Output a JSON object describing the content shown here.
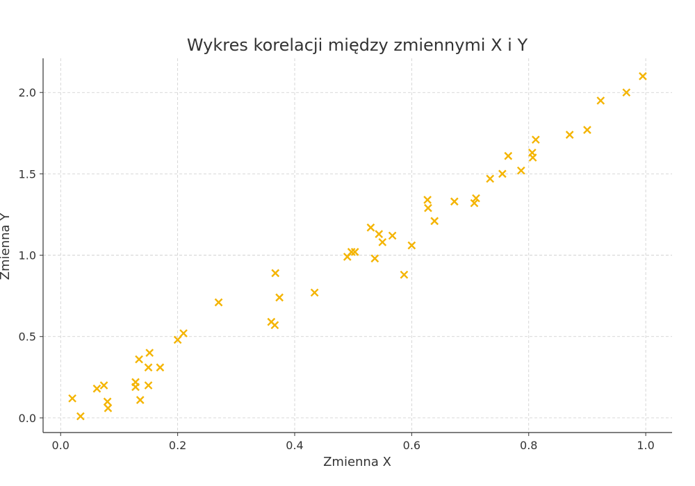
{
  "colors": {
    "marker": "#F4B400"
  },
  "chart_data": {
    "type": "scatter",
    "title": "Wykres korelacji między zmiennymi X i Y",
    "xlabel": "Zmienna X",
    "ylabel": "Zmienna Y",
    "xlim": [
      -0.03,
      1.045
    ],
    "ylim": [
      -0.09,
      2.21
    ],
    "xticks": [
      0.0,
      0.2,
      0.4,
      0.6,
      0.8,
      1.0
    ],
    "xtick_labels": [
      "0.0",
      "0.2",
      "0.4",
      "0.6",
      "0.8",
      "1.0"
    ],
    "yticks": [
      0.0,
      0.5,
      1.0,
      1.5,
      2.0
    ],
    "ytick_labels": [
      "0.0",
      "0.5",
      "1.0",
      "1.5",
      "2.0"
    ],
    "grid": true,
    "marker": "x",
    "points": [
      {
        "x": 0.02,
        "y": 0.12
      },
      {
        "x": 0.034,
        "y": 0.01
      },
      {
        "x": 0.062,
        "y": 0.18
      },
      {
        "x": 0.074,
        "y": 0.2
      },
      {
        "x": 0.08,
        "y": 0.1
      },
      {
        "x": 0.081,
        "y": 0.06
      },
      {
        "x": 0.128,
        "y": 0.22
      },
      {
        "x": 0.128,
        "y": 0.19
      },
      {
        "x": 0.134,
        "y": 0.36
      },
      {
        "x": 0.136,
        "y": 0.11
      },
      {
        "x": 0.15,
        "y": 0.31
      },
      {
        "x": 0.15,
        "y": 0.2
      },
      {
        "x": 0.152,
        "y": 0.4
      },
      {
        "x": 0.17,
        "y": 0.31
      },
      {
        "x": 0.2,
        "y": 0.48
      },
      {
        "x": 0.21,
        "y": 0.52
      },
      {
        "x": 0.27,
        "y": 0.71
      },
      {
        "x": 0.36,
        "y": 0.59
      },
      {
        "x": 0.366,
        "y": 0.57
      },
      {
        "x": 0.367,
        "y": 0.89
      },
      {
        "x": 0.374,
        "y": 0.74
      },
      {
        "x": 0.434,
        "y": 0.77
      },
      {
        "x": 0.49,
        "y": 0.99
      },
      {
        "x": 0.497,
        "y": 1.02
      },
      {
        "x": 0.503,
        "y": 1.02
      },
      {
        "x": 0.53,
        "y": 1.17
      },
      {
        "x": 0.537,
        "y": 0.98
      },
      {
        "x": 0.544,
        "y": 1.13
      },
      {
        "x": 0.55,
        "y": 1.08
      },
      {
        "x": 0.567,
        "y": 1.12
      },
      {
        "x": 0.587,
        "y": 0.88
      },
      {
        "x": 0.6,
        "y": 1.06
      },
      {
        "x": 0.627,
        "y": 1.34
      },
      {
        "x": 0.628,
        "y": 1.29
      },
      {
        "x": 0.639,
        "y": 1.21
      },
      {
        "x": 0.673,
        "y": 1.33
      },
      {
        "x": 0.707,
        "y": 1.32
      },
      {
        "x": 0.71,
        "y": 1.35
      },
      {
        "x": 0.734,
        "y": 1.47
      },
      {
        "x": 0.755,
        "y": 1.5
      },
      {
        "x": 0.765,
        "y": 1.61
      },
      {
        "x": 0.787,
        "y": 1.52
      },
      {
        "x": 0.806,
        "y": 1.63
      },
      {
        "x": 0.807,
        "y": 1.6
      },
      {
        "x": 0.812,
        "y": 1.71
      },
      {
        "x": 0.87,
        "y": 1.74
      },
      {
        "x": 0.9,
        "y": 1.77
      },
      {
        "x": 0.923,
        "y": 1.95
      },
      {
        "x": 0.967,
        "y": 2.0
      },
      {
        "x": 0.995,
        "y": 2.1
      }
    ]
  }
}
